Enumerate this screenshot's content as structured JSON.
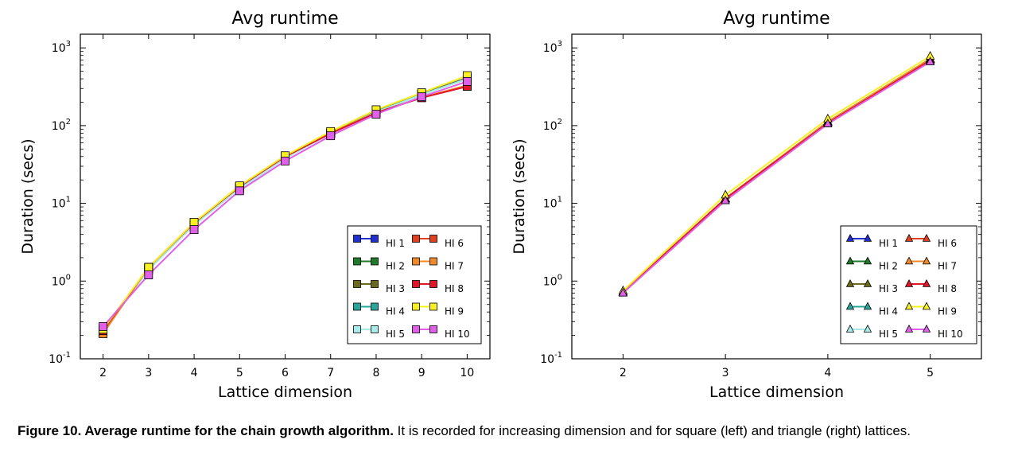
{
  "caption": {
    "label": "Figure 10. Average runtime for the chain growth algorithm.",
    "text": " It is recorded for increasing dimension and for square (left) and triangle (right) lattices."
  },
  "legend_colors": {
    "HI 1": "#1f2fd0",
    "HI 2": "#1f7a2a",
    "HI 3": "#6b6a1a",
    "HI 4": "#2aa59a",
    "HI 5": "#a8ece8",
    "HI 6": "#e0401f",
    "HI 7": "#f08a28",
    "HI 8": "#e01628",
    "HI 9": "#f8f020",
    "HI 10": "#e060e8"
  },
  "chart_data": [
    {
      "type": "line",
      "title": "Avg runtime",
      "xlabel": "Lattice dimension",
      "ylabel": "Duration (secs)",
      "yscale": "log",
      "ylim": [
        0.1,
        1500
      ],
      "xlim": [
        1.5,
        10.5
      ],
      "x": [
        2,
        3,
        4,
        5,
        6,
        7,
        8,
        9,
        10
      ],
      "marker": "square",
      "legend_position": "lower-right",
      "series": [
        {
          "name": "HI 1",
          "values": [
            0.22,
            1.45,
            5.4,
            15.8,
            39,
            80,
            152,
            255,
            410
          ]
        },
        {
          "name": "HI 2",
          "values": [
            0.22,
            1.45,
            5.4,
            15.8,
            39,
            80,
            152,
            255,
            410
          ]
        },
        {
          "name": "HI 3",
          "values": [
            0.22,
            1.45,
            5.4,
            15.8,
            39,
            80,
            152,
            255,
            410
          ]
        },
        {
          "name": "HI 4",
          "values": [
            0.22,
            1.4,
            5.3,
            15.5,
            38,
            79,
            150,
            250,
            400
          ]
        },
        {
          "name": "HI 5",
          "values": [
            0.22,
            1.4,
            5.3,
            15.5,
            38,
            79,
            150,
            250,
            400
          ]
        },
        {
          "name": "HI 6",
          "values": [
            0.23,
            1.5,
            5.6,
            16.5,
            40,
            80,
            146,
            230,
            320
          ]
        },
        {
          "name": "HI 7",
          "values": [
            0.21,
            1.5,
            5.6,
            16.5,
            40,
            80,
            146,
            230,
            330
          ]
        },
        {
          "name": "HI 8",
          "values": [
            0.23,
            1.5,
            5.6,
            16.5,
            40,
            79,
            146,
            228,
            320
          ]
        },
        {
          "name": "HI 9",
          "values": [
            0.24,
            1.5,
            5.7,
            16.8,
            41,
            84,
            160,
            265,
            440
          ]
        },
        {
          "name": "HI 10",
          "values": [
            0.26,
            1.2,
            4.6,
            14.5,
            35,
            74,
            140,
            235,
            370
          ]
        }
      ]
    },
    {
      "type": "line",
      "title": "Avg runtime",
      "xlabel": "Lattice dimension",
      "ylabel": "Duration (secs)",
      "yscale": "log",
      "ylim": [
        0.1,
        1500
      ],
      "xlim": [
        1.5,
        5.5
      ],
      "x": [
        2,
        3,
        4,
        5
      ],
      "marker": "triangle",
      "legend_position": "lower-right",
      "series": [
        {
          "name": "HI 1",
          "values": [
            0.72,
            11.5,
            112,
            720
          ]
        },
        {
          "name": "HI 2",
          "values": [
            0.72,
            11.5,
            112,
            720
          ]
        },
        {
          "name": "HI 3",
          "values": [
            0.72,
            11.5,
            112,
            720
          ]
        },
        {
          "name": "HI 4",
          "values": [
            0.72,
            11.3,
            110,
            710
          ]
        },
        {
          "name": "HI 5",
          "values": [
            0.72,
            11.3,
            110,
            710
          ]
        },
        {
          "name": "HI 6",
          "values": [
            0.72,
            11.5,
            110,
            700
          ]
        },
        {
          "name": "HI 7",
          "values": [
            0.72,
            11.5,
            112,
            720
          ]
        },
        {
          "name": "HI 8",
          "values": [
            0.72,
            11.5,
            108,
            690
          ]
        },
        {
          "name": "HI 9",
          "values": [
            0.75,
            12.8,
            122,
            780
          ]
        },
        {
          "name": "HI 10",
          "values": [
            0.7,
            10.8,
            105,
            660
          ]
        }
      ]
    }
  ]
}
